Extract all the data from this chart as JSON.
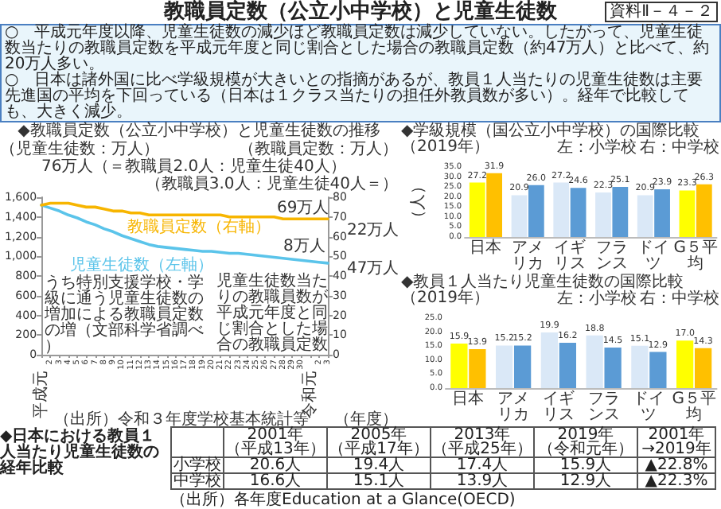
{
  "chart_data": [
    {
      "type": "other",
      "title": "教職員定数（公立小中学校）と児童生徒数",
      "annotations": [
        "資料Ⅱ－４－２",
        "○　平成元年度以降、児童生徒数の減少ほど教職員定数は減少していない。したがって、児童生徒数当たりの教職員定数を平成元年度と同じ割合とした場合の教職員定数（約47万人）と比べて、約20万人多い。",
        "○　日本は諸外国に比べ学級規模が大きいとの指摘があるが、教員１人当たりの児童生徒数は主要先進国の平均を下回っている（日本は１クラス当たりの担任外教員数が多い）。経年で比較しても、大きく減少。"
      ]
    },
    {
      "type": "line",
      "title": "◆教職員定数（公立小中学校）と児童生徒数の推移",
      "xlabel": "（年度）",
      "ylabel": "（児童生徒数：万人）",
      "y2label": "（教職員定数：万人）",
      "categories": [
        "平成元",
        "2",
        "3",
        "4",
        "5",
        "6",
        "7",
        "8",
        "9",
        "10",
        "11",
        "12",
        "13",
        "14",
        "15",
        "16",
        "17",
        "18",
        "19",
        "20",
        "21",
        "22",
        "23",
        "24",
        "25",
        "26",
        "27",
        "28",
        "29",
        "30",
        "令和元",
        "2",
        "3"
      ],
      "series": [
        {
          "name": "児童生徒数（左軸）",
          "color": "#5bc4ea",
          "values": [
            1520,
            1490,
            1460,
            1420,
            1390,
            1350,
            1320,
            1280,
            1250,
            1210,
            1180,
            1150,
            1120,
            1100,
            1090,
            1080,
            1070,
            1060,
            1050,
            1050,
            1040,
            1030,
            1030,
            1020,
            1010,
            1000,
            990,
            980,
            970,
            960,
            950,
            940,
            930
          ]
        },
        {
          "name": "教職員定数（右軸）",
          "color": "#f7b500",
          "axis": "y2",
          "values": [
            76,
            77,
            77,
            77,
            76,
            75,
            75,
            74,
            73,
            73,
            72,
            72,
            71,
            71,
            71,
            71,
            71,
            71,
            71,
            71,
            71,
            70,
            70,
            70,
            70,
            70,
            70,
            69,
            69,
            69,
            69,
            69,
            69
          ]
        }
      ],
      "ylim": [
        0,
        1600
      ],
      "yticks": [
        0,
        200,
        400,
        600,
        800,
        {
          "value": 1000,
          "label": "1,000"
        },
        {
          "value": 1200,
          "label": "1,200"
        },
        {
          "value": 1400,
          "label": "1,400"
        },
        {
          "value": 1600,
          "label": "1,600"
        }
      ],
      "y2lim": [
        0,
        80
      ],
      "y2ticks": [
        0,
        10,
        20,
        30,
        40,
        50,
        60,
        70,
        80
      ],
      "marker": "none",
      "annotations": [
        "76万人（＝教職員2.0人：児童生徒40人）",
        "（教職員3.0人：児童生徒40人＝）",
        "69万人",
        "22万人",
        "8万人",
        "47万人",
        "うち特別支援学校・学級に通う児童生徒数の増加による教職員定数の増（文部科学省調べ）",
        "児童生徒数当たりの教職員数が平成元年度と同じ割合とした場合の教職員定数",
        "（出所）令和３年度学校基本統計等"
      ]
    },
    {
      "type": "bar",
      "title": "◆学級規模（国公立小中学校）の国際比較（2019年）",
      "ylabel": "（人）",
      "categories": [
        "日本",
        "アメリカ",
        "イギリス",
        "フランス",
        "ドイツ",
        "G５平均"
      ],
      "series": [
        {
          "colors": [
            "#ffff00",
            "#dae8f7",
            "#dae8f7",
            "#dae8f7",
            "#dae8f7",
            "#ffff00"
          ],
          "values": [
            27.2,
            20.9,
            27.2,
            22.3,
            20.9,
            23.3
          ],
          "value_labels": [
            "27.2",
            "20.9",
            "27.2",
            "22.3",
            "20.9",
            "23.3"
          ]
        },
        {
          "colors": [
            "#ffc000",
            "#5b9bd5",
            "#5b9bd5",
            "#5b9bd5",
            "#5b9bd5",
            "#ffc000"
          ],
          "values": [
            31.9,
            26.0,
            24.6,
            25.1,
            23.9,
            26.3
          ],
          "value_labels": [
            "31.9",
            "26.0",
            "24.6",
            "25.1",
            "23.9",
            "26.3"
          ]
        }
      ],
      "ylim": [
        0,
        35
      ],
      "yticks": [
        {
          "value": 0,
          "label": "0.0"
        },
        {
          "value": 5,
          "label": "5.0"
        },
        {
          "value": 10,
          "label": "10.0"
        },
        {
          "value": 15,
          "label": "15.0"
        },
        {
          "value": 20,
          "label": "20.0"
        },
        {
          "value": 25,
          "label": "25.0"
        },
        {
          "value": 30,
          "label": "30.0"
        },
        {
          "value": 35,
          "label": "35.0"
        }
      ],
      "annotations": [
        "左：小学校",
        "右：中学校"
      ]
    },
    {
      "type": "bar",
      "title": "◆教員１人当たり児童生徒数の国際比較（2019年）",
      "categories": [
        "日本",
        "アメリカ",
        "イギリス",
        "フランス",
        "ドイツ",
        "G５平均"
      ],
      "series": [
        {
          "colors": [
            "#ffff00",
            "#dae8f7",
            "#dae8f7",
            "#dae8f7",
            "#dae8f7",
            "#ffff00"
          ],
          "values": [
            15.9,
            15.2,
            19.9,
            18.8,
            15.1,
            17.0
          ],
          "value_labels": [
            "15.9",
            "15.2",
            "19.9",
            "18.8",
            "15.1",
            "17.0"
          ]
        },
        {
          "colors": [
            "#ffc000",
            "#5b9bd5",
            "#5b9bd5",
            "#5b9bd5",
            "#5b9bd5",
            "#ffc000"
          ],
          "values": [
            13.9,
            15.2,
            16.2,
            14.5,
            12.9,
            14.3
          ],
          "value_labels": [
            "13.9",
            "15.2",
            "16.2",
            "14.5",
            "12.9",
            "14.3"
          ]
        }
      ],
      "ylim": [
        0,
        25
      ],
      "yticks": [
        {
          "value": 0,
          "label": "0.0"
        },
        {
          "value": 5,
          "label": "5.0"
        },
        {
          "value": 10,
          "label": "10.0"
        },
        {
          "value": 15,
          "label": "15.0"
        },
        {
          "value": 20,
          "label": "20.0"
        },
        {
          "value": 25,
          "label": "25.0"
        }
      ],
      "annotations": [
        "左：小学校",
        "右：中学校"
      ]
    },
    {
      "type": "other",
      "title": "◆日本における教員１人当たり児童生徒数の経年比較",
      "categories": [
        "2001年（平成13年）",
        "2005年（平成17年）",
        "2013年（平成25年）",
        "2019年（令和元年）",
        "2001年→2019年"
      ],
      "y_categories": [
        "小学校",
        "中学校"
      ],
      "cell_labels": [
        [
          "20.6人",
          "19.4人",
          "17.4人",
          "15.9人",
          "▲22.8%"
        ],
        [
          "16.6人",
          "15.1人",
          "13.9人",
          "12.9人",
          "▲22.3%"
        ]
      ],
      "annotations": [
        "（出所）各年度Education at a Glance(OECD)"
      ]
    }
  ]
}
